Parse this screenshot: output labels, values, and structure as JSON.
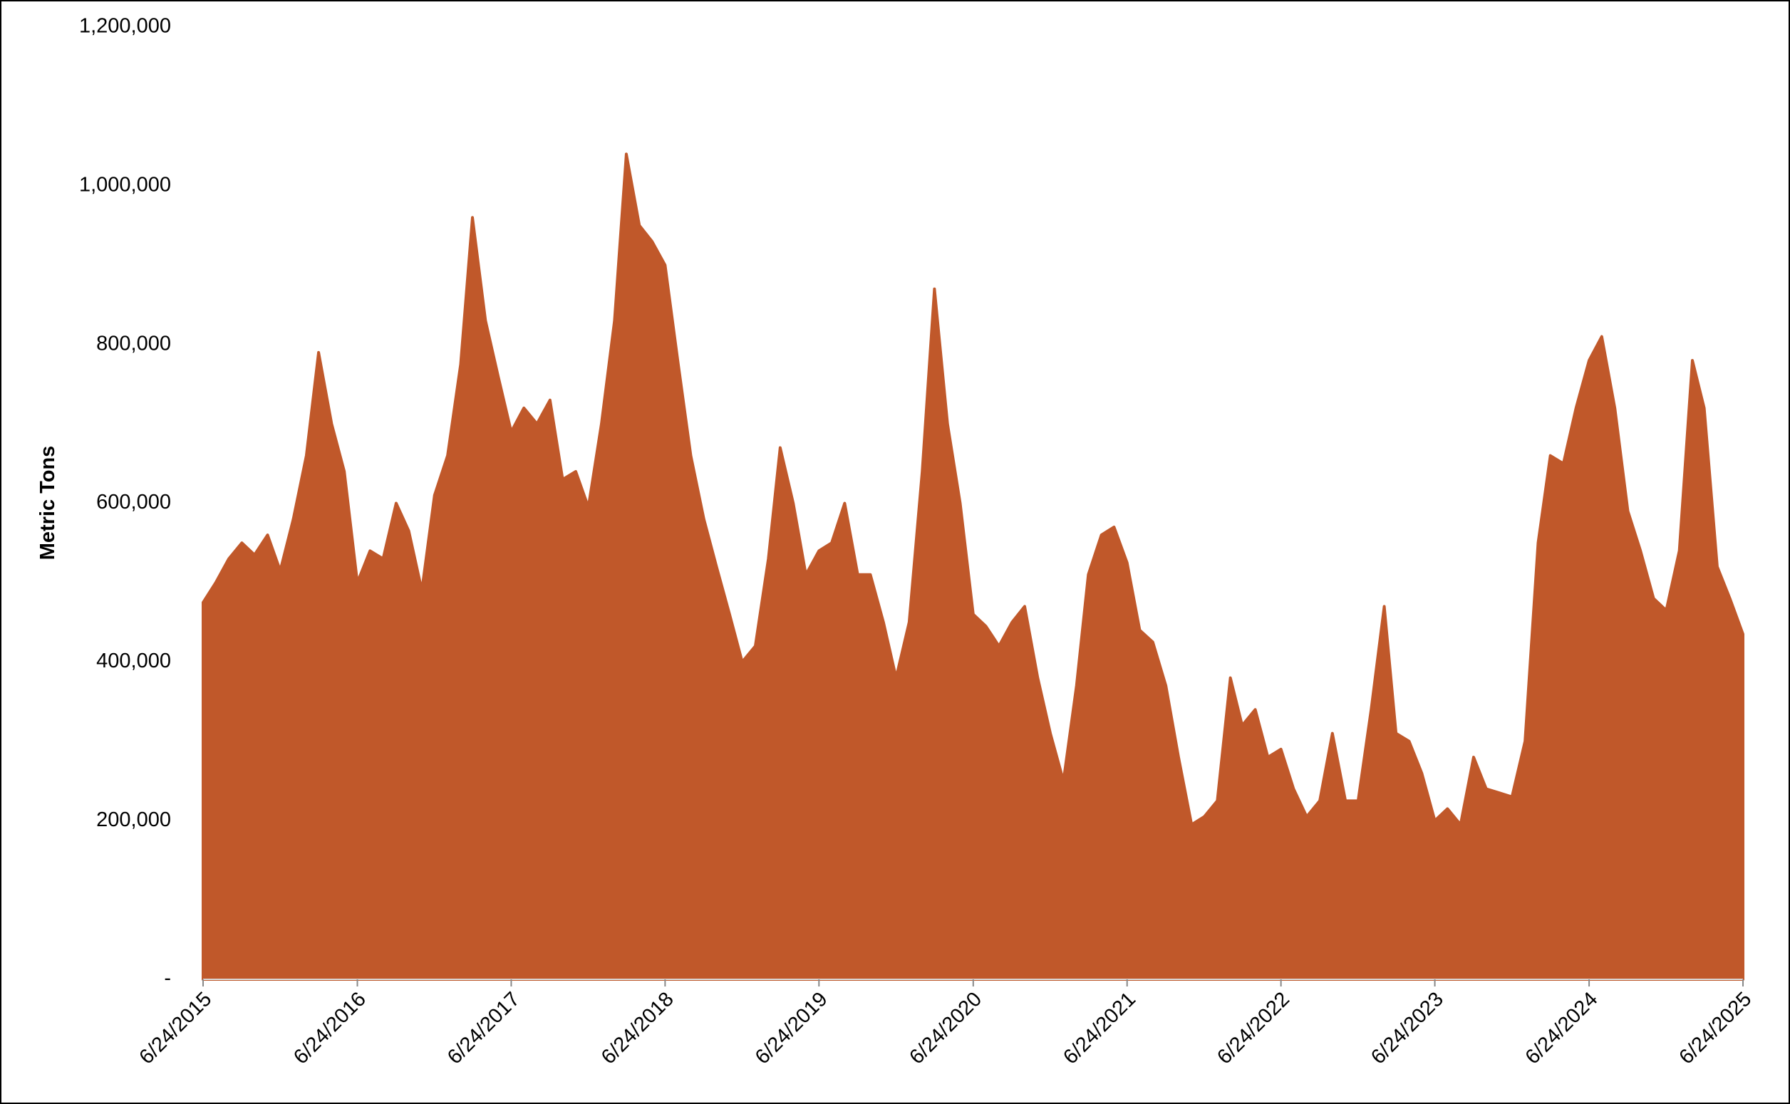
{
  "chart_data": {
    "type": "area",
    "y_label": "Metric Tons",
    "color": "#c0582a",
    "x": [
      "6/24/2015",
      "7/24/2015",
      "8/24/2015",
      "9/24/2015",
      "10/24/2015",
      "11/24/2015",
      "12/24/2015",
      "1/24/2016",
      "2/24/2016",
      "3/24/2016",
      "4/24/2016",
      "5/24/2016",
      "6/24/2016",
      "7/24/2016",
      "8/24/2016",
      "9/24/2016",
      "10/24/2016",
      "11/24/2016",
      "12/24/2016",
      "1/24/2017",
      "2/24/2017",
      "3/24/2017",
      "4/24/2017",
      "5/24/2017",
      "6/24/2017",
      "7/24/2017",
      "8/24/2017",
      "9/24/2017",
      "10/24/2017",
      "11/24/2017",
      "12/24/2017",
      "1/24/2018",
      "2/24/2018",
      "3/24/2018",
      "4/24/2018",
      "5/24/2018",
      "6/24/2018",
      "7/24/2018",
      "8/24/2018",
      "9/24/2018",
      "10/24/2018",
      "11/24/2018",
      "12/24/2018",
      "1/24/2019",
      "2/24/2019",
      "3/24/2019",
      "4/24/2019",
      "5/24/2019",
      "6/24/2019",
      "7/24/2019",
      "8/24/2019",
      "9/24/2019",
      "10/24/2019",
      "11/24/2019",
      "12/24/2019",
      "1/24/2020",
      "2/24/2020",
      "3/24/2020",
      "4/24/2020",
      "5/24/2020",
      "6/24/2020",
      "7/24/2020",
      "8/24/2020",
      "9/24/2020",
      "10/24/2020",
      "11/24/2020",
      "12/24/2020",
      "1/24/2021",
      "2/24/2021",
      "3/24/2021",
      "4/24/2021",
      "5/24/2021",
      "6/24/2021",
      "7/24/2021",
      "8/24/2021",
      "9/24/2021",
      "10/24/2021",
      "11/24/2021",
      "12/24/2021",
      "1/24/2022",
      "2/24/2022",
      "3/24/2022",
      "4/24/2022",
      "5/24/2022",
      "6/24/2022",
      "7/24/2022",
      "8/24/2022",
      "9/24/2022",
      "10/24/2022",
      "11/24/2022",
      "12/24/2022",
      "1/24/2023",
      "2/24/2023",
      "3/24/2023",
      "4/24/2023",
      "5/24/2023",
      "6/24/2023",
      "7/24/2023",
      "8/24/2023",
      "9/24/2023",
      "10/24/2023",
      "11/24/2023",
      "12/24/2023",
      "1/24/2024",
      "2/24/2024",
      "3/24/2024",
      "4/24/2024",
      "5/24/2024",
      "6/24/2024",
      "7/24/2024",
      "8/24/2024",
      "9/24/2024",
      "10/24/2024",
      "11/24/2024",
      "12/24/2024",
      "1/24/2025",
      "2/24/2025",
      "3/24/2025",
      "4/24/2025",
      "5/24/2025",
      "6/24/2025"
    ],
    "values": [
      475000,
      500000,
      530000,
      550000,
      535000,
      560000,
      515000,
      580000,
      660000,
      790000,
      700000,
      640000,
      500000,
      540000,
      530000,
      600000,
      565000,
      490000,
      610000,
      660000,
      775000,
      960000,
      830000,
      760000,
      690000,
      720000,
      700000,
      730000,
      630000,
      640000,
      595000,
      700000,
      830000,
      1040000,
      950000,
      930000,
      900000,
      780000,
      660000,
      580000,
      520000,
      460000,
      400000,
      420000,
      530000,
      670000,
      600000,
      510000,
      540000,
      550000,
      600000,
      510000,
      510000,
      450000,
      380000,
      450000,
      640000,
      870000,
      700000,
      600000,
      460000,
      445000,
      420000,
      450000,
      470000,
      380000,
      310000,
      250000,
      370000,
      510000,
      560000,
      570000,
      525000,
      440000,
      425000,
      370000,
      280000,
      195000,
      205000,
      225000,
      380000,
      320000,
      340000,
      280000,
      290000,
      240000,
      205000,
      225000,
      310000,
      225000,
      225000,
      340000,
      470000,
      310000,
      300000,
      260000,
      200000,
      215000,
      195000,
      280000,
      240000,
      235000,
      230000,
      300000,
      550000,
      660000,
      650000,
      720000,
      780000,
      810000,
      720000,
      590000,
      540000,
      480000,
      465000,
      540000,
      780000,
      720000,
      520000,
      480000,
      435000
    ],
    "xlim": [
      "6/24/2015",
      "6/24/2025"
    ],
    "xticks": [
      "6/24/2015",
      "6/24/2016",
      "6/24/2017",
      "6/24/2018",
      "6/24/2019",
      "6/24/2020",
      "6/24/2021",
      "6/24/2022",
      "6/24/2023",
      "6/24/2024",
      "6/24/2025"
    ],
    "ylim": [
      0,
      1200000
    ],
    "yticks": [
      {
        "value": 0,
        "label": "-"
      },
      {
        "value": 200000,
        "label": "200,000"
      },
      {
        "value": 400000,
        "label": "400,000"
      },
      {
        "value": 600000,
        "label": "600,000"
      },
      {
        "value": 800000,
        "label": "800,000"
      },
      {
        "value": 1000000,
        "label": "1,000,000"
      },
      {
        "value": 1200000,
        "label": "1,200,000"
      }
    ]
  }
}
